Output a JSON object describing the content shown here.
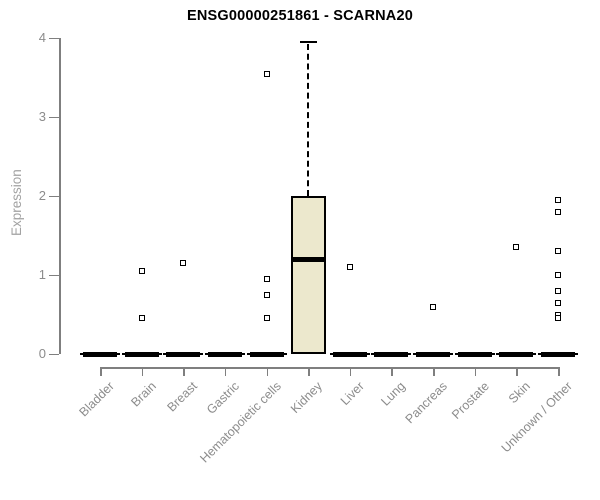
{
  "chart_data": {
    "type": "boxplot",
    "title": "ENSG00000251861 - SCARNA20",
    "ylabel": "Expression",
    "xlabel": "",
    "ylim": [
      0,
      4
    ],
    "yticks": [
      0,
      1,
      2,
      3,
      4
    ],
    "grid": false,
    "legend": null,
    "categories": [
      "Bladder",
      "Brain",
      "Breast",
      "Gastric",
      "Hematopoietic cells",
      "Kidney",
      "Liver",
      "Lung",
      "Pancreas",
      "Prostate",
      "Skin",
      "Unknown / Other"
    ],
    "series": [
      {
        "category": "Bladder",
        "min": 0,
        "q1": 0,
        "median": 0,
        "q3": 0,
        "max": 0,
        "outliers": []
      },
      {
        "category": "Brain",
        "min": 0,
        "q1": 0,
        "median": 0,
        "q3": 0,
        "max": 0,
        "outliers": [
          1.05,
          0.45
        ]
      },
      {
        "category": "Breast",
        "min": 0,
        "q1": 0,
        "median": 0,
        "q3": 0,
        "max": 0,
        "outliers": [
          1.15
        ]
      },
      {
        "category": "Gastric",
        "min": 0,
        "q1": 0,
        "median": 0,
        "q3": 0,
        "max": 0,
        "outliers": []
      },
      {
        "category": "Hematopoietic cells",
        "min": 0,
        "q1": 0,
        "median": 0,
        "q3": 0,
        "max": 0,
        "outliers": [
          3.55,
          0.95,
          0.75,
          0.45
        ]
      },
      {
        "category": "Kidney",
        "min": 0,
        "q1": 0,
        "median": 1.2,
        "q3": 2.0,
        "max": 3.95,
        "outliers": []
      },
      {
        "category": "Liver",
        "min": 0,
        "q1": 0,
        "median": 0,
        "q3": 0,
        "max": 0,
        "outliers": [
          1.1
        ]
      },
      {
        "category": "Lung",
        "min": 0,
        "q1": 0,
        "median": 0,
        "q3": 0,
        "max": 0,
        "outliers": []
      },
      {
        "category": "Pancreas",
        "min": 0,
        "q1": 0,
        "median": 0,
        "q3": 0,
        "max": 0,
        "outliers": [
          0.6
        ]
      },
      {
        "category": "Prostate",
        "min": 0,
        "q1": 0,
        "median": 0,
        "q3": 0,
        "max": 0,
        "outliers": []
      },
      {
        "category": "Skin",
        "min": 0,
        "q1": 0,
        "median": 0,
        "q3": 0,
        "max": 0,
        "outliers": [
          1.35
        ]
      },
      {
        "category": "Unknown / Other",
        "min": 0,
        "q1": 0,
        "median": 0,
        "q3": 0,
        "max": 0,
        "outliers": [
          1.95,
          1.8,
          1.3,
          1.0,
          0.8,
          0.65,
          0.5,
          0.45
        ]
      }
    ],
    "colors": {
      "box_fill": "#ECE8CD",
      "box_border": "#000000",
      "median": "#000000",
      "outlier_fill": "#ffffff",
      "axis": "#7f7f7f",
      "tick_label": "#8c8c8c",
      "axis_label": "#a2a2a2",
      "title": "#000000",
      "background": "#ffffff"
    }
  }
}
